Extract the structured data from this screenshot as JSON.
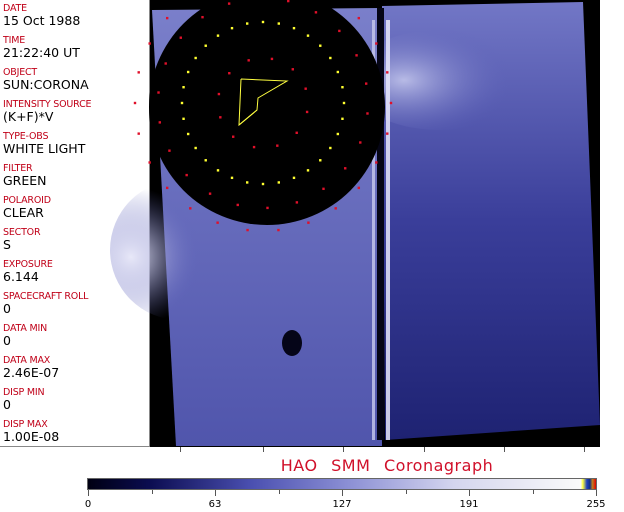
{
  "fields": [
    {
      "label": "DATE",
      "value": "15 Oct 1988"
    },
    {
      "label": "TIME",
      "value": "21:22:40 UT"
    },
    {
      "label": "OBJECT",
      "value": "SUN:CORONA"
    },
    {
      "label": "INTENSITY SOURCE",
      "value": "(K+F)*V"
    },
    {
      "label": "TYPE-OBS",
      "value": "WHITE LIGHT"
    },
    {
      "label": "FILTER",
      "value": "GREEN"
    },
    {
      "label": "POLAROID",
      "value": "CLEAR"
    },
    {
      "label": "SECTOR",
      "value": "S"
    },
    {
      "label": "EXPOSURE",
      "value": "6.144"
    },
    {
      "label": "SPACECRAFT ROLL",
      "value": "0"
    },
    {
      "label": "DATA MIN",
      "value": "0"
    },
    {
      "label": "DATA MAX",
      "value": "2.46E-07"
    },
    {
      "label": "DISP MIN",
      "value": "0"
    },
    {
      "label": "DISP MAX",
      "value": "1.00E-08"
    }
  ],
  "title": "HAO  SMM  Coronagraph",
  "colorbar": {
    "ticks": [
      "0",
      "63",
      "127",
      "191",
      "255"
    ],
    "min": 0,
    "max": 255,
    "colors": {
      "dark": "#000012",
      "mid": "#4a4fb0",
      "light": "#fafafa",
      "label": "#c00018",
      "title": "#d0102a"
    }
  }
}
